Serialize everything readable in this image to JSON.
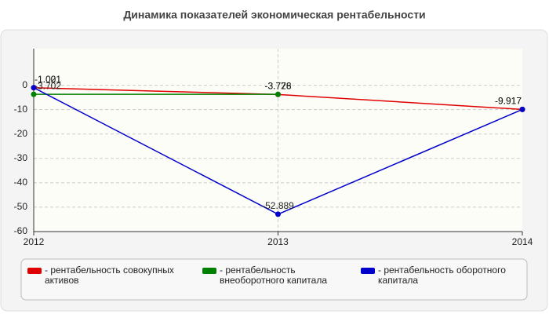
{
  "chart_data": {
    "type": "line",
    "title": "Динамика показателей экономическая рентабельности",
    "categories": [
      "2012",
      "2013",
      "2014"
    ],
    "series": [
      {
        "name": "- рентабельность совокупных активов",
        "color": "#e00000",
        "values": [
          -1.021,
          -3.776,
          -9.917
        ]
      },
      {
        "name": "- рентабельность внеоборотного капитала",
        "color": "#008000",
        "values": [
          -3.702,
          -3.728,
          null
        ]
      },
      {
        "name": "- рентабельность оборотного капитала",
        "color": "#0000cc",
        "values": [
          -1.001,
          -52.889,
          -9.917
        ]
      }
    ],
    "ylim": [
      -60,
      15
    ],
    "yticks": [
      0,
      -10,
      -20,
      -30,
      -40,
      -50,
      -60
    ],
    "grid": true
  }
}
